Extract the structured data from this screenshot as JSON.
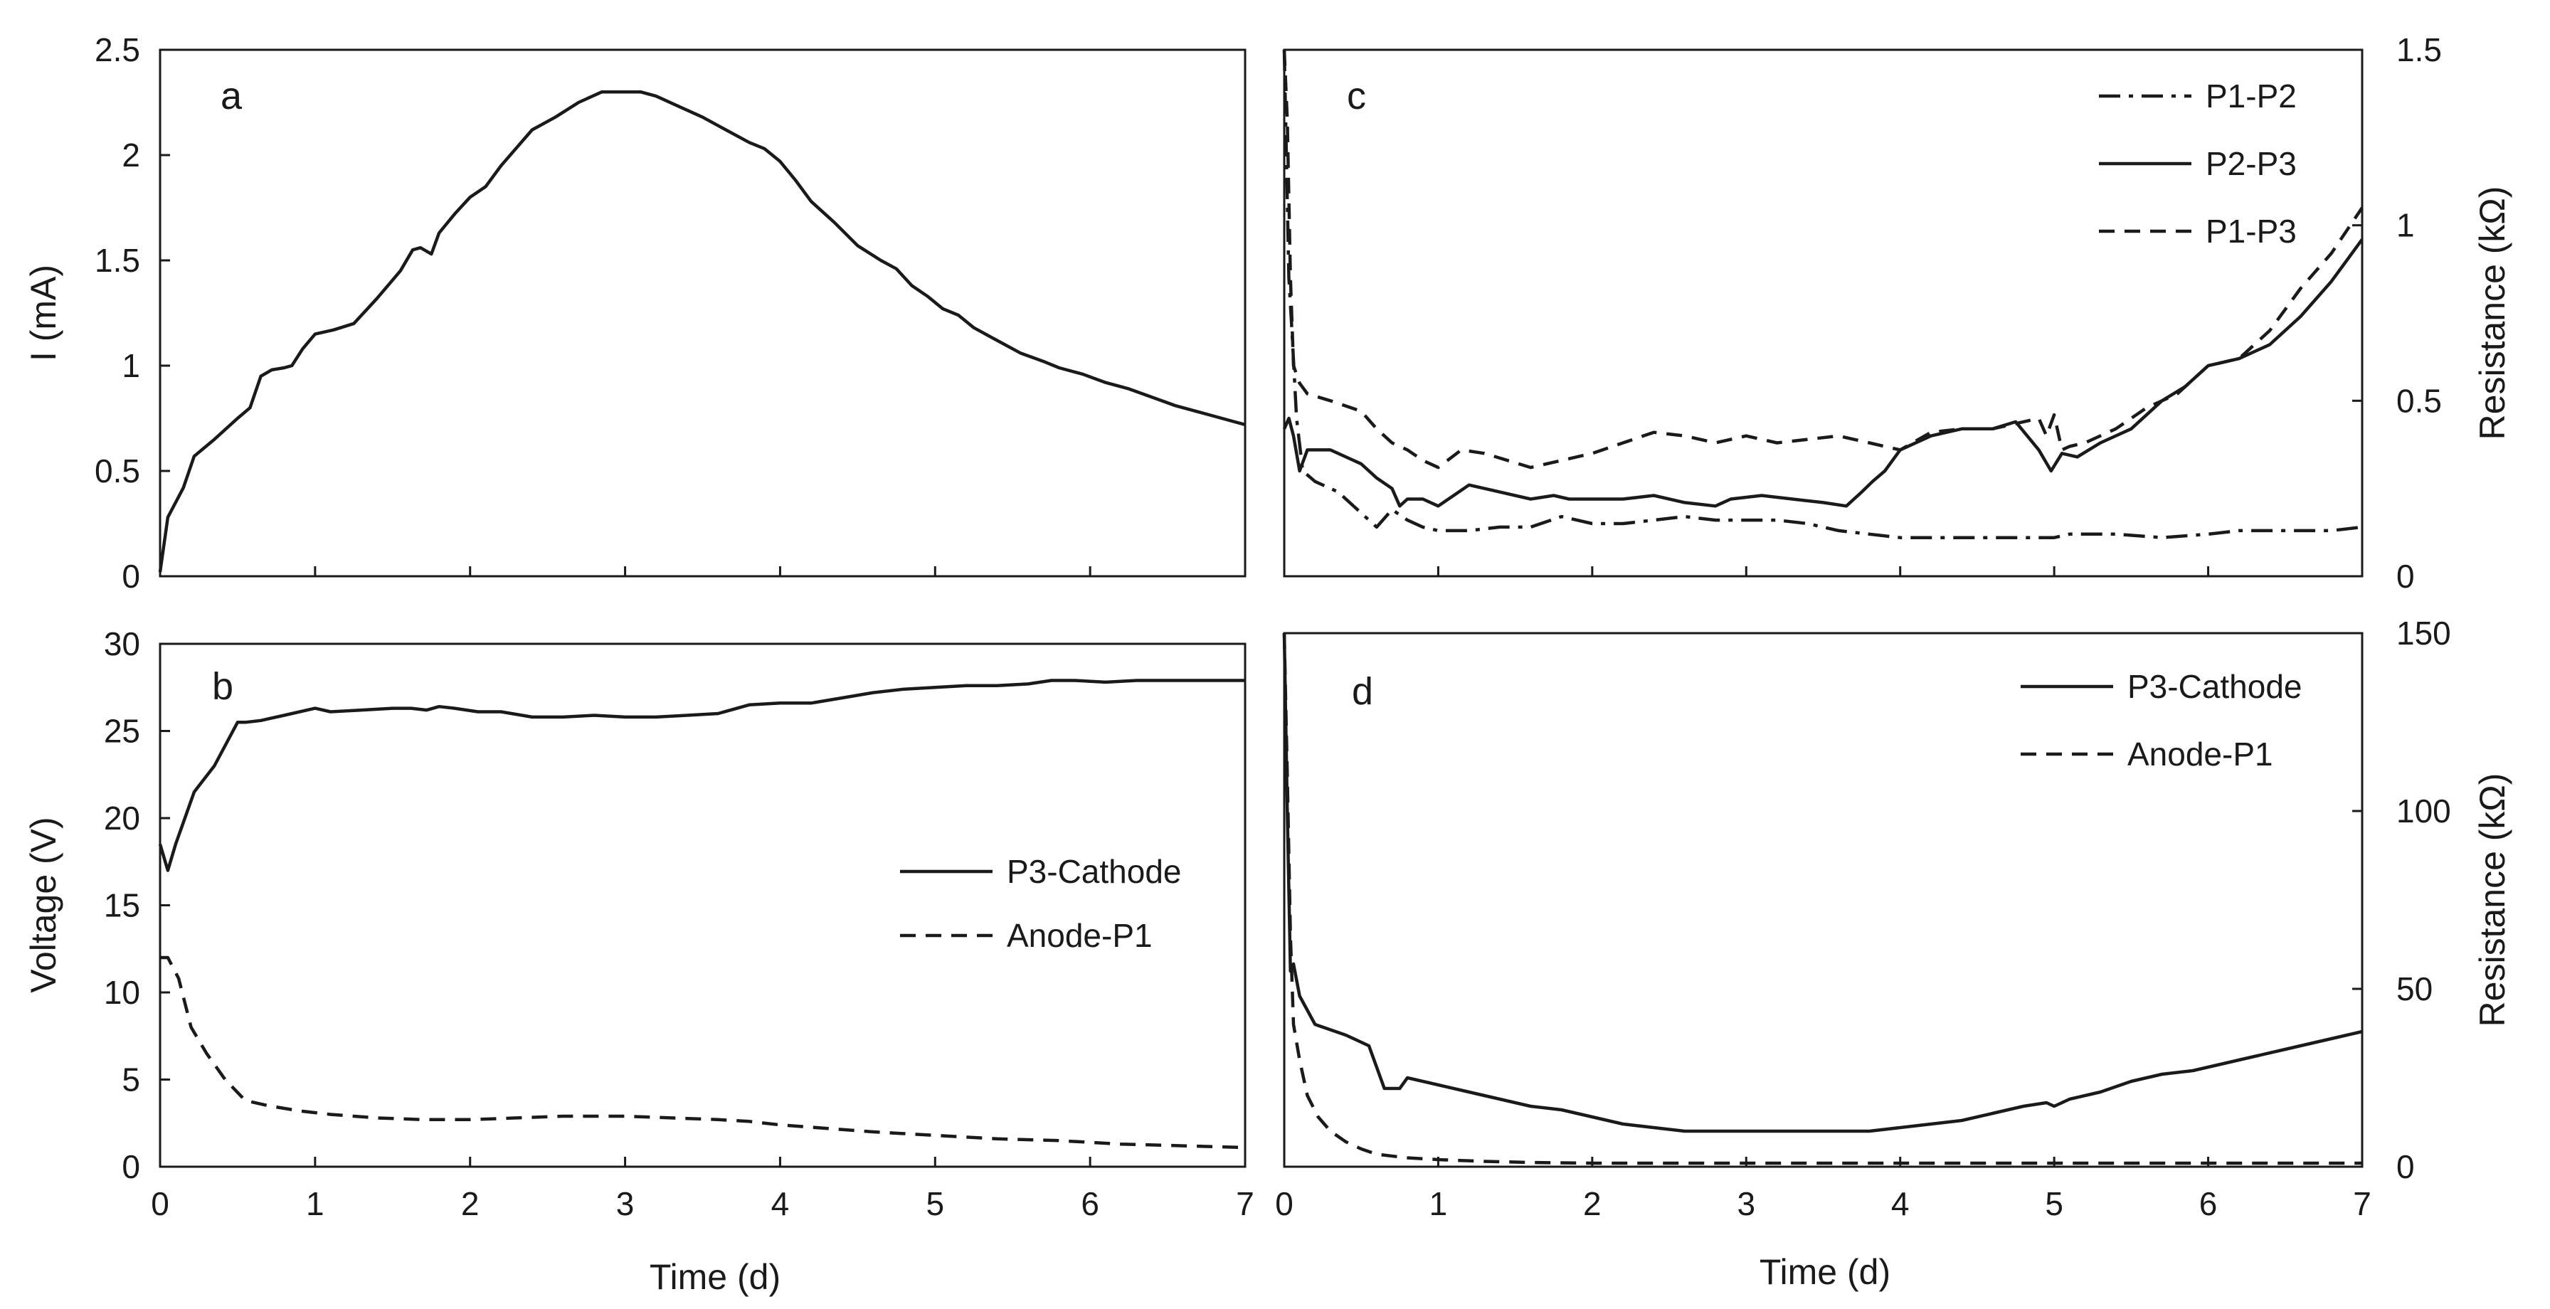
{
  "chart_data": [
    {
      "id": "a",
      "type": "line",
      "panel_letter": "a",
      "xlabel": "",
      "ylabel": "I (mA)",
      "xlim": [
        0,
        7
      ],
      "ylim": [
        0,
        2.5
      ],
      "xticks": [
        0,
        1,
        2,
        3,
        4,
        5,
        6,
        7
      ],
      "yticks": [
        0,
        0.5,
        1,
        1.5,
        2,
        2.5
      ],
      "ytick_labels": [
        "0",
        "0.5",
        "1",
        "1.5",
        "2",
        "2.5"
      ],
      "show_xtick_labels": false,
      "series": [
        {
          "name": "I",
          "style": "solid",
          "x": [
            0,
            0.05,
            0.15,
            0.22,
            0.35,
            0.5,
            0.58,
            0.65,
            0.72,
            0.8,
            0.85,
            0.92,
            1.0,
            1.12,
            1.25,
            1.4,
            1.55,
            1.63,
            1.68,
            1.75,
            1.8,
            1.9,
            2.0,
            2.1,
            2.2,
            2.4,
            2.55,
            2.7,
            2.85,
            3.0,
            3.1,
            3.2,
            3.35,
            3.5,
            3.65,
            3.8,
            3.9,
            4.0,
            4.1,
            4.2,
            4.35,
            4.5,
            4.65,
            4.75,
            4.85,
            4.95,
            5.05,
            5.15,
            5.25,
            5.4,
            5.55,
            5.7,
            5.8,
            5.95,
            6.1,
            6.25,
            6.4,
            6.55,
            6.7,
            6.8,
            6.9,
            7.0
          ],
          "y": [
            0.02,
            0.28,
            0.42,
            0.57,
            0.65,
            0.75,
            0.8,
            0.95,
            0.98,
            0.99,
            1.0,
            1.08,
            1.15,
            1.17,
            1.2,
            1.32,
            1.45,
            1.55,
            1.56,
            1.53,
            1.63,
            1.72,
            1.8,
            1.85,
            1.95,
            2.12,
            2.18,
            2.25,
            2.3,
            2.3,
            2.3,
            2.28,
            2.23,
            2.18,
            2.12,
            2.06,
            2.03,
            1.97,
            1.88,
            1.78,
            1.68,
            1.57,
            1.5,
            1.46,
            1.38,
            1.33,
            1.27,
            1.24,
            1.18,
            1.12,
            1.06,
            1.02,
            0.99,
            0.96,
            0.92,
            0.89,
            0.85,
            0.81,
            0.78,
            0.76,
            0.74,
            0.72
          ]
        }
      ]
    },
    {
      "id": "b",
      "type": "line",
      "panel_letter": "b",
      "xlabel": "Time (d)",
      "ylabel": "Voltage (V)",
      "xlim": [
        0,
        7
      ],
      "ylim": [
        0,
        30
      ],
      "xticks": [
        0,
        1,
        2,
        3,
        4,
        5,
        6,
        7
      ],
      "yticks": [
        0,
        5,
        10,
        15,
        20,
        25,
        30
      ],
      "xtick_labels": [
        "0",
        "1",
        "2",
        "3",
        "4",
        "5",
        "6",
        "7"
      ],
      "ytick_labels": [
        "0",
        "5",
        "10",
        "15",
        "20",
        "25",
        "30"
      ],
      "show_xtick_labels": true,
      "legend_position": "middle-right",
      "series": [
        {
          "name": "P3-Cathode",
          "style": "solid",
          "x": [
            0,
            0.05,
            0.1,
            0.22,
            0.35,
            0.5,
            0.55,
            0.65,
            0.8,
            1.0,
            1.1,
            1.3,
            1.5,
            1.62,
            1.72,
            1.8,
            1.9,
            2.05,
            2.2,
            2.4,
            2.6,
            2.8,
            3.0,
            3.2,
            3.4,
            3.6,
            3.8,
            4.0,
            4.2,
            4.4,
            4.6,
            4.8,
            5.0,
            5.2,
            5.4,
            5.6,
            5.75,
            5.9,
            6.1,
            6.3,
            6.5,
            6.7,
            6.85,
            7.0
          ],
          "y": [
            18.5,
            17.0,
            18.5,
            21.5,
            23.0,
            25.5,
            25.5,
            25.6,
            25.9,
            26.3,
            26.1,
            26.2,
            26.3,
            26.3,
            26.2,
            26.4,
            26.3,
            26.1,
            26.1,
            25.8,
            25.8,
            25.9,
            25.8,
            25.8,
            25.9,
            26.0,
            26.5,
            26.6,
            26.6,
            26.9,
            27.2,
            27.4,
            27.5,
            27.6,
            27.6,
            27.7,
            27.9,
            27.9,
            27.8,
            27.9,
            27.9,
            27.9,
            27.9,
            27.9
          ]
        },
        {
          "name": "Anode-P1",
          "style": "dashed",
          "x": [
            0,
            0.05,
            0.12,
            0.2,
            0.3,
            0.42,
            0.55,
            0.7,
            0.9,
            1.1,
            1.4,
            1.7,
            2.0,
            2.3,
            2.6,
            3.0,
            3.3,
            3.6,
            3.8,
            4.0,
            4.3,
            4.6,
            5.0,
            5.4,
            5.8,
            6.2,
            6.6,
            7.0
          ],
          "y": [
            12.0,
            12.0,
            10.8,
            8.0,
            6.5,
            5.0,
            3.8,
            3.5,
            3.2,
            3.0,
            2.8,
            2.7,
            2.7,
            2.8,
            2.9,
            2.9,
            2.8,
            2.7,
            2.6,
            2.4,
            2.2,
            2.0,
            1.8,
            1.6,
            1.5,
            1.3,
            1.2,
            1.1
          ]
        }
      ]
    },
    {
      "id": "c",
      "type": "line",
      "panel_letter": "c",
      "xlabel": "",
      "ylabel": "Resistance (kΩ)",
      "yaxis_side": "right",
      "xlim": [
        0,
        7
      ],
      "ylim": [
        0,
        1.5
      ],
      "xticks": [
        0,
        1,
        2,
        3,
        4,
        5,
        6,
        7
      ],
      "yticks": [
        0,
        0.5,
        1,
        1.5
      ],
      "ytick_labels": [
        "0",
        "0.5",
        "1",
        "1.5"
      ],
      "show_xtick_labels": false,
      "legend_position": "top-right",
      "series": [
        {
          "name": "P1-P2",
          "style": "dashdot",
          "x": [
            0,
            0.03,
            0.05,
            0.08,
            0.12,
            0.2,
            0.35,
            0.5,
            0.6,
            0.7,
            0.8,
            0.9,
            1.0,
            1.2,
            1.4,
            1.6,
            1.8,
            2.0,
            2.2,
            2.4,
            2.6,
            2.8,
            3.0,
            3.2,
            3.4,
            3.6,
            3.8,
            4.0,
            4.3,
            4.6,
            4.9,
            5.0,
            5.1,
            5.4,
            5.7,
            6.0,
            6.2,
            6.5,
            6.8,
            7.0
          ],
          "y": [
            1.5,
            0.85,
            0.7,
            0.45,
            0.3,
            0.27,
            0.24,
            0.18,
            0.14,
            0.19,
            0.16,
            0.14,
            0.13,
            0.13,
            0.14,
            0.14,
            0.17,
            0.15,
            0.15,
            0.16,
            0.17,
            0.16,
            0.16,
            0.16,
            0.15,
            0.13,
            0.12,
            0.11,
            0.11,
            0.11,
            0.11,
            0.11,
            0.12,
            0.12,
            0.11,
            0.12,
            0.13,
            0.13,
            0.13,
            0.14
          ]
        },
        {
          "name": "P2-P3",
          "style": "solid",
          "x": [
            0,
            0.03,
            0.06,
            0.1,
            0.15,
            0.3,
            0.5,
            0.6,
            0.7,
            0.75,
            0.8,
            0.9,
            1.0,
            1.1,
            1.2,
            1.4,
            1.6,
            1.75,
            1.85,
            2.0,
            2.2,
            2.4,
            2.6,
            2.8,
            2.9,
            3.1,
            3.3,
            3.5,
            3.65,
            3.75,
            3.82,
            3.9,
            4.0,
            4.2,
            4.4,
            4.6,
            4.75,
            4.9,
            4.98,
            5.05,
            5.15,
            5.3,
            5.5,
            5.7,
            5.85,
            6.0,
            6.2,
            6.4,
            6.6,
            6.8,
            6.95,
            7.0
          ],
          "y": [
            0.42,
            0.45,
            0.4,
            0.3,
            0.36,
            0.36,
            0.32,
            0.28,
            0.25,
            0.2,
            0.22,
            0.22,
            0.2,
            0.23,
            0.26,
            0.24,
            0.22,
            0.23,
            0.22,
            0.22,
            0.22,
            0.23,
            0.21,
            0.2,
            0.22,
            0.23,
            0.22,
            0.21,
            0.2,
            0.24,
            0.27,
            0.3,
            0.36,
            0.4,
            0.42,
            0.42,
            0.44,
            0.36,
            0.3,
            0.35,
            0.34,
            0.38,
            0.42,
            0.5,
            0.54,
            0.6,
            0.62,
            0.66,
            0.74,
            0.84,
            0.93,
            0.96
          ]
        },
        {
          "name": "P1-P3",
          "style": "dashed",
          "x": [
            0,
            0.02,
            0.04,
            0.06,
            0.1,
            0.15,
            0.3,
            0.5,
            0.6,
            0.7,
            0.8,
            0.9,
            1.0,
            1.15,
            1.3,
            1.6,
            1.8,
            2.0,
            2.2,
            2.4,
            2.6,
            2.8,
            3.0,
            3.2,
            3.4,
            3.6,
            3.8,
            4.0,
            4.2,
            4.4,
            4.6,
            4.8,
            4.9,
            4.95,
            5.0,
            5.05,
            5.1,
            5.2,
            5.4,
            5.6,
            5.8,
            6.0,
            6.2,
            6.4,
            6.6,
            6.8,
            7.0
          ],
          "y": [
            1.5,
            1.3,
            0.85,
            0.6,
            0.55,
            0.52,
            0.5,
            0.47,
            0.42,
            0.38,
            0.36,
            0.33,
            0.31,
            0.36,
            0.35,
            0.31,
            0.33,
            0.35,
            0.38,
            0.41,
            0.4,
            0.38,
            0.4,
            0.38,
            0.39,
            0.4,
            0.38,
            0.36,
            0.41,
            0.42,
            0.42,
            0.44,
            0.45,
            0.4,
            0.46,
            0.36,
            0.37,
            0.38,
            0.42,
            0.48,
            0.52,
            0.6,
            0.62,
            0.7,
            0.82,
            0.92,
            1.05
          ]
        }
      ]
    },
    {
      "id": "d",
      "type": "line",
      "panel_letter": "d",
      "xlabel": "Time (d)",
      "ylabel": "Resistance (kΩ)",
      "yaxis_side": "right",
      "xlim": [
        0,
        7
      ],
      "ylim": [
        0,
        150
      ],
      "xticks": [
        0,
        1,
        2,
        3,
        4,
        5,
        6,
        7
      ],
      "yticks": [
        0,
        50,
        100,
        150
      ],
      "xtick_labels": [
        "0",
        "1",
        "2",
        "3",
        "4",
        "5",
        "6",
        "7"
      ],
      "ytick_labels": [
        "0",
        "50",
        "100",
        "150"
      ],
      "show_xtick_labels": true,
      "legend_position": "top-right",
      "series": [
        {
          "name": "P3-Cathode",
          "style": "solid",
          "x": [
            0,
            0.02,
            0.04,
            0.06,
            0.1,
            0.2,
            0.4,
            0.55,
            0.65,
            0.72,
            0.75,
            0.8,
            0.9,
            1.0,
            1.2,
            1.4,
            1.6,
            1.8,
            2.0,
            2.2,
            2.4,
            2.6,
            2.8,
            3.0,
            3.2,
            3.4,
            3.6,
            3.8,
            4.0,
            4.2,
            4.4,
            4.6,
            4.8,
            4.95,
            5.0,
            5.05,
            5.1,
            5.3,
            5.5,
            5.7,
            5.9,
            6.1,
            6.3,
            6.5,
            6.7,
            6.9,
            7.0
          ],
          "y": [
            150,
            100,
            55,
            57,
            48,
            40,
            37,
            34,
            22,
            22,
            22,
            25,
            24,
            23,
            21,
            19,
            17,
            16,
            14,
            12,
            11,
            10,
            10,
            10,
            10,
            10,
            10,
            10,
            11,
            12,
            13,
            15,
            17,
            18,
            17,
            18,
            19,
            21,
            24,
            26,
            27,
            29,
            31,
            33,
            35,
            37,
            38
          ]
        },
        {
          "name": "Anode-P1",
          "style": "dashed",
          "x": [
            0,
            0.02,
            0.04,
            0.06,
            0.1,
            0.15,
            0.22,
            0.3,
            0.4,
            0.5,
            0.6,
            0.8,
            1.0,
            1.3,
            1.6,
            2.0,
            2.5,
            3.0,
            4.0,
            5.0,
            6.0,
            7.0
          ],
          "y": [
            150,
            110,
            65,
            40,
            30,
            20,
            14,
            10,
            7,
            5,
            3.5,
            2.5,
            2,
            1.5,
            1.2,
            1.0,
            1.0,
            1.0,
            1.0,
            1.0,
            1.0,
            1.0
          ]
        }
      ]
    }
  ]
}
